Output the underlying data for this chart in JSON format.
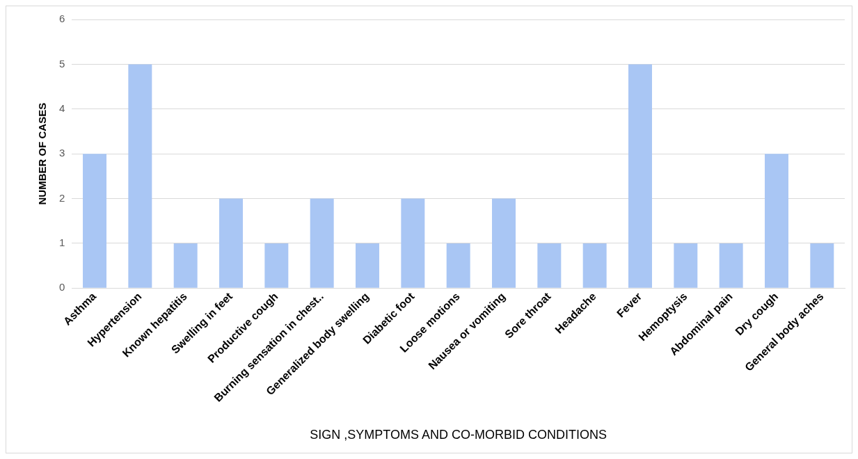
{
  "chart_data": {
    "type": "bar",
    "xlabel": "SIGN ,SYMPTOMS AND CO-MORBID CONDITIONS",
    "ylabel": "NUMBER OF CASES",
    "categories": [
      "Asthma",
      "Hypertension",
      "Known hepatitis",
      "Swelling in feet",
      "Productive cough",
      "Burning sensation in chest..",
      "Generalized body swelling",
      "Diabetic foot",
      "Loose motions",
      "Nausea or vomiting",
      "Sore throat",
      "Headache",
      "Fever",
      "Hemoptysis",
      "Abdominal pain",
      "Dry cough",
      "General body aches"
    ],
    "values": [
      3,
      5,
      1,
      2,
      1,
      2,
      1,
      2,
      1,
      2,
      1,
      1,
      5,
      1,
      1,
      3,
      1
    ],
    "color": "#a9c6f4",
    "ylim": [
      0,
      6
    ],
    "yticks": [
      0,
      1,
      2,
      3,
      4,
      5,
      6
    ],
    "grid": "y",
    "legend": false
  }
}
